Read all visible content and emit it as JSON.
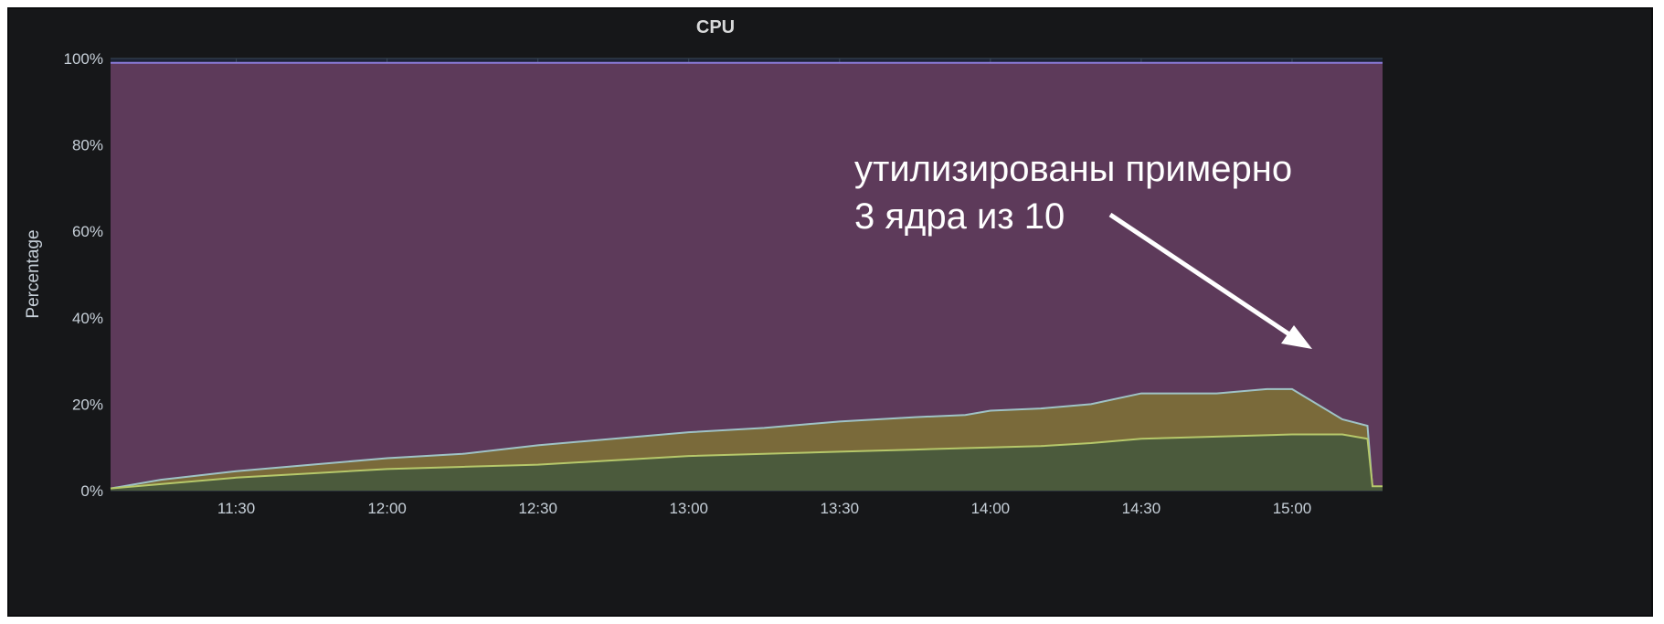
{
  "chart_data": {
    "type": "area",
    "title": "CPU",
    "xlabel": "",
    "ylabel": "Percentage",
    "x_ticks": [
      "11:30",
      "12:00",
      "12:30",
      "13:00",
      "13:30",
      "14:00",
      "14:30",
      "15:00"
    ],
    "y_ticks": [
      "0%",
      "20%",
      "40%",
      "60%",
      "80%",
      "100%"
    ],
    "ylim": [
      0,
      100
    ],
    "xlim": [
      "11:05",
      "15:18"
    ],
    "grid": true,
    "stacked": true,
    "annotation": {
      "lines": [
        "утилизированы примерно",
        "3 ядра из 10"
      ],
      "arrow": true
    },
    "series": [
      {
        "color": "#7eb26d",
        "x": [
          "11:05",
          "11:15",
          "11:30",
          "11:45",
          "12:00",
          "12:15",
          "12:30",
          "12:45",
          "13:00",
          "13:15",
          "13:30",
          "13:45",
          "14:00",
          "14:10",
          "14:20",
          "14:30",
          "14:45",
          "15:00",
          "15:10",
          "15:15",
          "15:16",
          "15:18"
        ],
        "values": [
          0.5,
          1.5,
          3,
          4,
          5,
          5.5,
          6,
          7,
          8,
          8.5,
          9,
          9.5,
          10,
          10.3,
          11,
          12,
          12.5,
          13,
          13,
          12,
          1,
          1
        ]
      },
      {
        "color": "#cca300",
        "x": [
          "11:05",
          "11:15",
          "11:30",
          "11:45",
          "12:00",
          "12:15",
          "12:30",
          "12:45",
          "13:00",
          "13:15",
          "13:20",
          "13:30",
          "13:45",
          "13:55",
          "14:00",
          "14:10",
          "14:20",
          "14:30",
          "14:45",
          "14:55",
          "15:00",
          "15:10",
          "15:15",
          "15:16",
          "15:18"
        ],
        "values": [
          0.5,
          2.5,
          4.5,
          6,
          7.5,
          8.5,
          10.5,
          12,
          13.5,
          14.5,
          15,
          16,
          17,
          17.5,
          18.5,
          19,
          20,
          22.5,
          22.5,
          23.5,
          23.5,
          16.5,
          15,
          0.5,
          0.5
        ]
      },
      {
        "color": "#6ed0e0",
        "x": [
          "11:05",
          "15:18"
        ],
        "values": [
          99,
          99
        ]
      }
    ]
  }
}
